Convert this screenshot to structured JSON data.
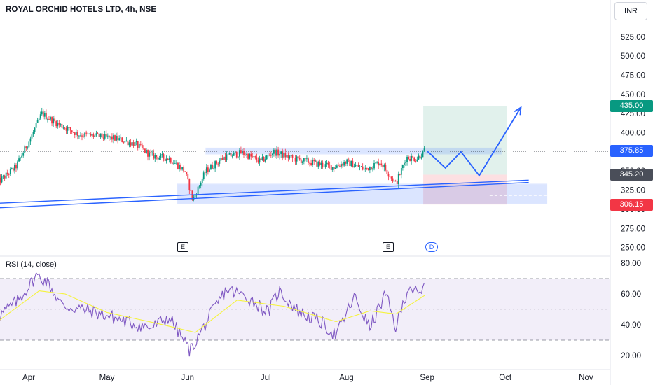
{
  "header": {
    "title": "ROYAL ORCHID HOTELS LTD, 4h, NSE",
    "currency_button": "INR"
  },
  "events": {
    "e1": "E",
    "e2": "E",
    "d1": "D"
  },
  "rsi": {
    "title": "RSI (14, close)"
  },
  "price_tags": {
    "target": "435.00",
    "last": "375.85",
    "entry": "345.20",
    "stop": "306.15"
  },
  "colors": {
    "up": "#089981",
    "down": "#f23645",
    "accent": "#2962ff",
    "rsi_line": "#7e57c2",
    "rsi_ma": "#f5f33f",
    "profit_zone": "#dcefe9",
    "loss_zone": "#fbdbdd",
    "target_tag": "#089981",
    "last_tag": "#2962ff",
    "entry_tag": "#4a4e59",
    "stop_tag": "#f23645"
  },
  "chart_data": [
    {
      "type": "candlestick",
      "title": "ROYAL ORCHID HOTELS LTD, 4h, NSE",
      "xlabel": "",
      "ylabel": "",
      "x_ticks": [
        "Apr",
        "May",
        "Jun",
        "Jul",
        "Aug",
        "Sep",
        "Oct",
        "Nov"
      ],
      "y_ticks": [
        250,
        275,
        300,
        325,
        350,
        375,
        400,
        425,
        450,
        475,
        500,
        525
      ],
      "ylim": [
        240,
        540
      ],
      "grid": false,
      "approx_close_path": [
        {
          "date": "2024-03-20",
          "value": 335
        },
        {
          "date": "2024-03-27",
          "value": 355
        },
        {
          "date": "2024-04-02",
          "value": 395
        },
        {
          "date": "2024-04-06",
          "value": 425
        },
        {
          "date": "2024-04-12",
          "value": 412
        },
        {
          "date": "2024-04-20",
          "value": 398
        },
        {
          "date": "2024-04-28",
          "value": 395
        },
        {
          "date": "2024-05-05",
          "value": 392
        },
        {
          "date": "2024-05-12",
          "value": 385
        },
        {
          "date": "2024-05-18",
          "value": 370
        },
        {
          "date": "2024-05-25",
          "value": 366
        },
        {
          "date": "2024-05-31",
          "value": 350
        },
        {
          "date": "2024-06-03",
          "value": 312
        },
        {
          "date": "2024-06-08",
          "value": 350
        },
        {
          "date": "2024-06-15",
          "value": 368
        },
        {
          "date": "2024-06-22",
          "value": 374
        },
        {
          "date": "2024-06-29",
          "value": 362
        },
        {
          "date": "2024-07-04",
          "value": 375
        },
        {
          "date": "2024-07-12",
          "value": 366
        },
        {
          "date": "2024-07-20",
          "value": 360
        },
        {
          "date": "2024-07-27",
          "value": 355
        },
        {
          "date": "2024-08-01",
          "value": 362
        },
        {
          "date": "2024-08-08",
          "value": 352
        },
        {
          "date": "2024-08-14",
          "value": 362
        },
        {
          "date": "2024-08-20",
          "value": 333
        },
        {
          "date": "2024-08-24",
          "value": 368
        },
        {
          "date": "2024-08-28",
          "value": 366
        },
        {
          "date": "2024-08-31",
          "value": 376
        }
      ],
      "annotations": {
        "last_price": 375.85,
        "resistance_zone": [
          372,
          380
        ],
        "support_zone": [
          307,
          333
        ],
        "long_position": {
          "target": 435.0,
          "entry": 345.2,
          "stop": 306.15
        },
        "projected_path": [
          {
            "date": "2024-09-01",
            "value": 376
          },
          {
            "date": "2024-09-08",
            "value": 354
          },
          {
            "date": "2024-09-14",
            "value": 375
          },
          {
            "date": "2024-09-21",
            "value": 344
          },
          {
            "date": "2024-10-07",
            "value": 433
          }
        ]
      }
    },
    {
      "type": "line",
      "title": "RSI (14, close)",
      "x_ticks": [
        "Apr",
        "May",
        "Jun",
        "Jul",
        "Aug",
        "Sep",
        "Oct",
        "Nov"
      ],
      "y_ticks": [
        20,
        40,
        60,
        80
      ],
      "ylim": [
        15,
        85
      ],
      "bands": [
        30,
        70
      ],
      "rsi_path": [
        {
          "date": "2024-03-20",
          "value": 45
        },
        {
          "date": "2024-03-28",
          "value": 56
        },
        {
          "date": "2024-04-04",
          "value": 72
        },
        {
          "date": "2024-04-08",
          "value": 68
        },
        {
          "date": "2024-04-14",
          "value": 52
        },
        {
          "date": "2024-04-22",
          "value": 50
        },
        {
          "date": "2024-05-01",
          "value": 46
        },
        {
          "date": "2024-05-10",
          "value": 41
        },
        {
          "date": "2024-05-18",
          "value": 38
        },
        {
          "date": "2024-05-25",
          "value": 45
        },
        {
          "date": "2024-06-02",
          "value": 23
        },
        {
          "date": "2024-06-10",
          "value": 47
        },
        {
          "date": "2024-06-16",
          "value": 63
        },
        {
          "date": "2024-06-24",
          "value": 58
        },
        {
          "date": "2024-07-02",
          "value": 48
        },
        {
          "date": "2024-07-06",
          "value": 62
        },
        {
          "date": "2024-07-14",
          "value": 48
        },
        {
          "date": "2024-07-22",
          "value": 42
        },
        {
          "date": "2024-07-28",
          "value": 33
        },
        {
          "date": "2024-08-04",
          "value": 58
        },
        {
          "date": "2024-08-10",
          "value": 38
        },
        {
          "date": "2024-08-16",
          "value": 60
        },
        {
          "date": "2024-08-20",
          "value": 38
        },
        {
          "date": "2024-08-25",
          "value": 66
        },
        {
          "date": "2024-08-29",
          "value": 58
        },
        {
          "date": "2024-08-31",
          "value": 65
        }
      ],
      "ma_path": [
        {
          "date": "2024-03-20",
          "value": 42
        },
        {
          "date": "2024-04-05",
          "value": 62
        },
        {
          "date": "2024-04-15",
          "value": 60
        },
        {
          "date": "2024-05-01",
          "value": 48
        },
        {
          "date": "2024-05-20",
          "value": 41
        },
        {
          "date": "2024-06-04",
          "value": 35
        },
        {
          "date": "2024-06-20",
          "value": 56
        },
        {
          "date": "2024-07-08",
          "value": 52
        },
        {
          "date": "2024-07-28",
          "value": 42
        },
        {
          "date": "2024-08-10",
          "value": 49
        },
        {
          "date": "2024-08-20",
          "value": 47
        },
        {
          "date": "2024-08-31",
          "value": 59
        }
      ]
    }
  ]
}
